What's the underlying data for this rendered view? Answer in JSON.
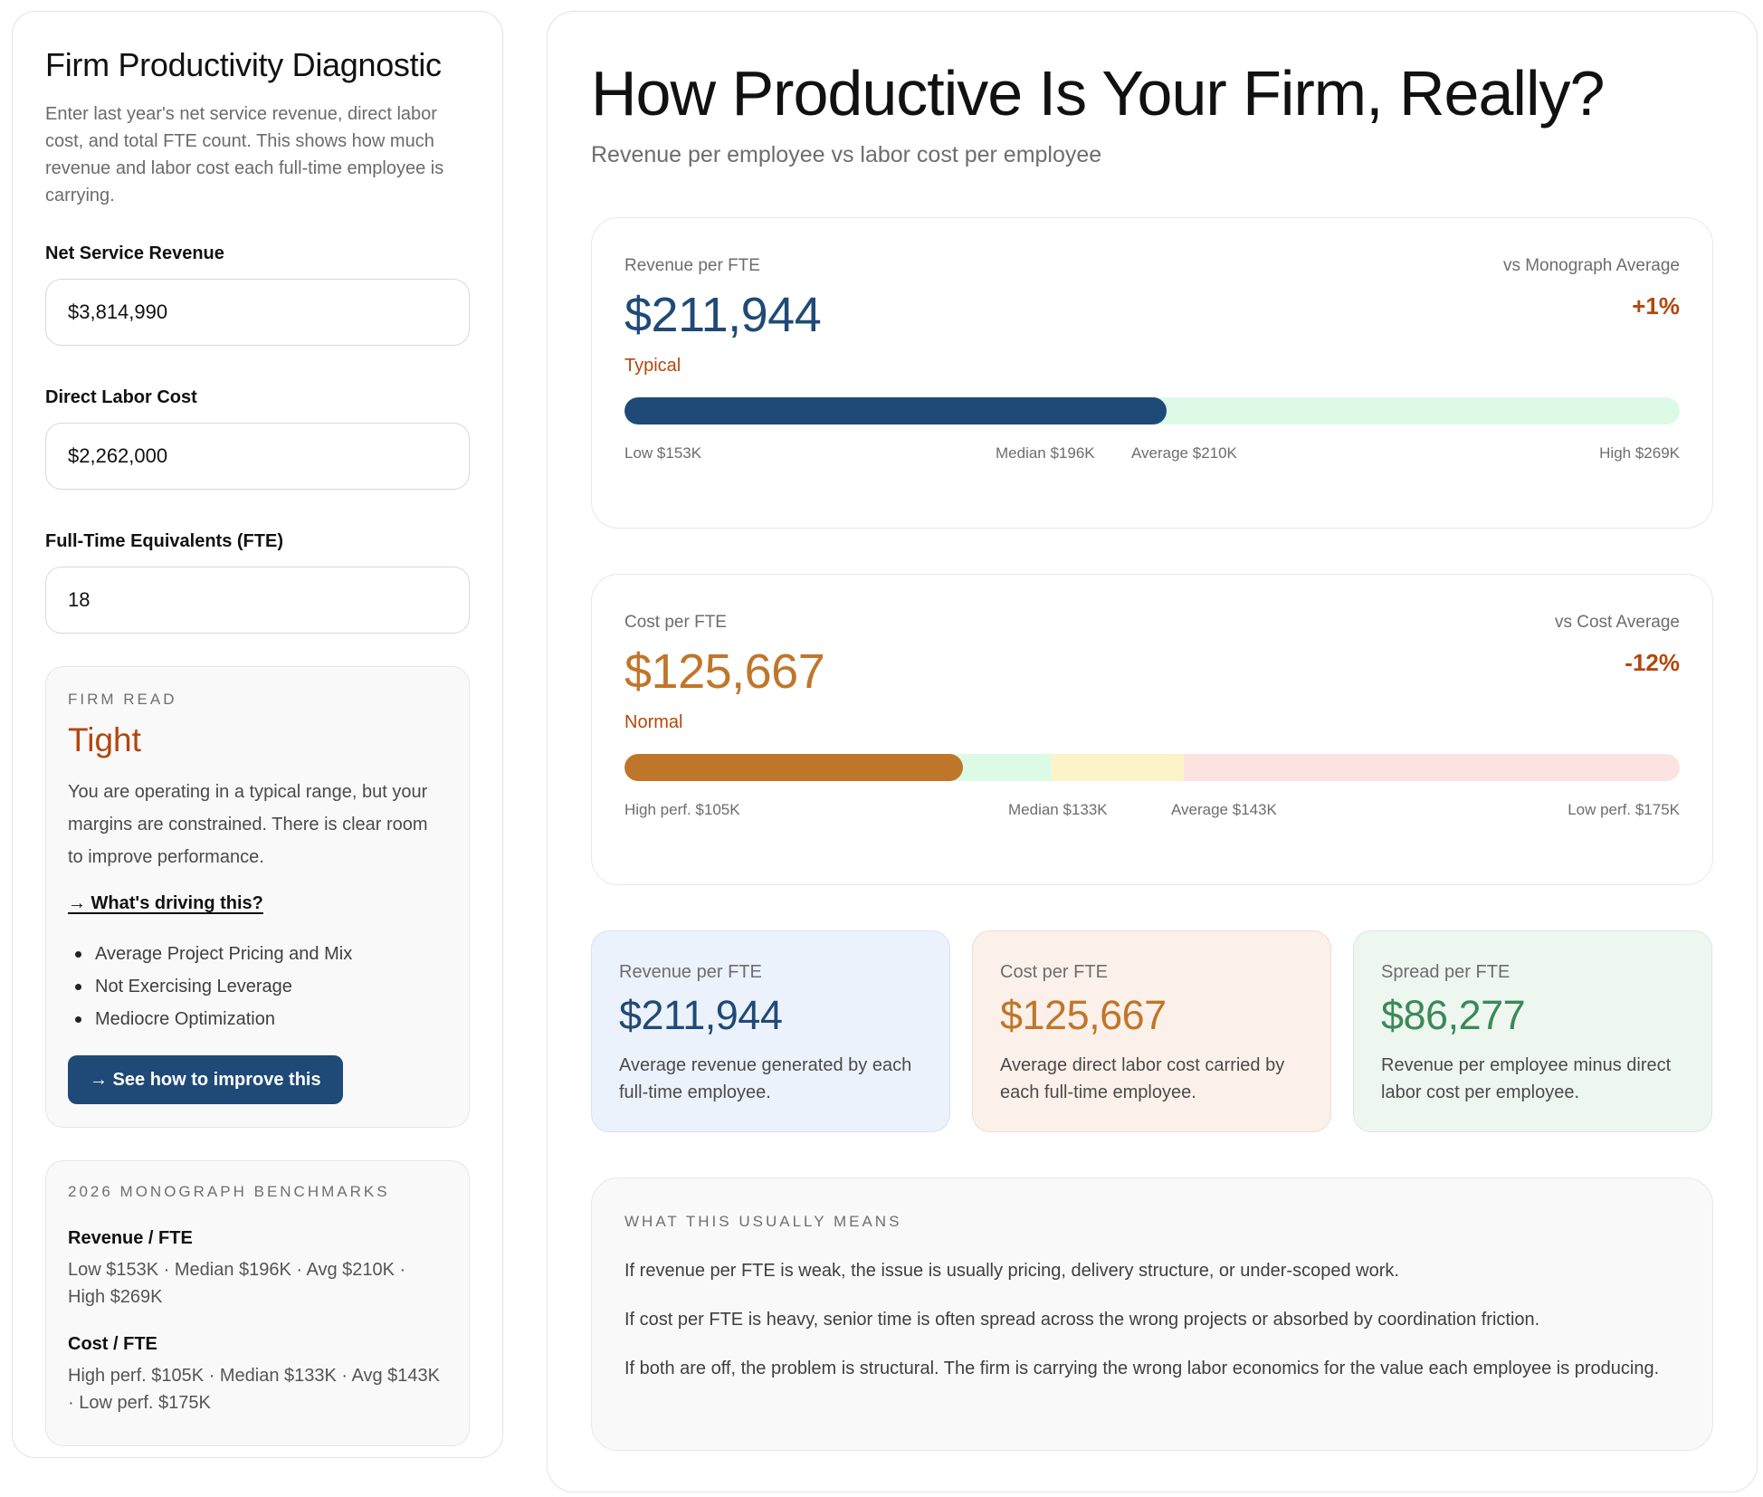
{
  "sidebar": {
    "title": "Firm Productivity Diagnostic",
    "description": "Enter last year's net service revenue, direct labor cost, and total FTE count. This shows how much revenue and labor cost each full-time employee is carrying.",
    "fields": {
      "revenue": {
        "label": "Net Service Revenue",
        "value": "$3,814,990"
      },
      "labor": {
        "label": "Direct Labor Cost",
        "value": "$2,262,000"
      },
      "fte": {
        "label": "Full-Time Equivalents (FTE)",
        "value": "18"
      }
    },
    "firm_read": {
      "eyebrow": "FIRM READ",
      "verdict": "Tight",
      "text": "You are operating in a typical range, but your margins are constrained. There is clear room to improve performance.",
      "link": "→ What's driving this?",
      "drivers": [
        "Average Project Pricing and Mix",
        "Not Exercising Leverage",
        "Mediocre Optimization"
      ],
      "cta": "→ See how to improve this"
    },
    "benchmarks": {
      "eyebrow": "2026 MONOGRAPH BENCHMARKS",
      "revenue_heading": "Revenue / FTE",
      "revenue_text": "Low $153K · Median $196K · Avg $210K · High $269K",
      "cost_heading": "Cost / FTE",
      "cost_text": "High perf. $105K · Median $133K · Avg $143K · Low perf. $175K"
    }
  },
  "main": {
    "title": "How Productive Is Your Firm, Really?",
    "subtitle": "Revenue per employee vs labor cost per employee",
    "revenue_card": {
      "label": "Revenue per FTE",
      "value": "$211,944",
      "status": "Typical",
      "compare_label": "vs Monograph Average",
      "compare_value": "+1%",
      "fill_fraction": 0.514,
      "colors": {
        "fill": "#1f4a78",
        "track": "#ddfae6"
      },
      "ticks": {
        "low": "Low $153K",
        "median": "Median $196K",
        "average": "Average $210K",
        "high": "High $269K"
      }
    },
    "cost_card": {
      "label": "Cost per FTE",
      "value": "$125,667",
      "status": "Normal",
      "compare_label": "vs Cost Average",
      "compare_value": "-12%",
      "fill_fraction": 0.321,
      "colors": {
        "fill": "#c0762a",
        "good": "#ddfae6",
        "mid": "#fdf3c9",
        "bad": "#fde2e2"
      },
      "ticks": {
        "low": "High perf. $105K",
        "median": "Median $133K",
        "average": "Average $143K",
        "high": "Low perf. $175K"
      }
    },
    "summary": [
      {
        "label": "Revenue per FTE",
        "value": "$211,944",
        "desc": "Average revenue generated by each full-time employee.",
        "color": "#1f4a78"
      },
      {
        "label": "Cost per FTE",
        "value": "$125,667",
        "desc": "Average direct labor cost carried by each full-time employee.",
        "color": "#c0762a"
      },
      {
        "label": "Spread per FTE",
        "value": "$86,277",
        "desc": "Revenue per employee minus direct labor cost per employee.",
        "color": "#3b8a57"
      }
    ],
    "means": {
      "eyebrow": "WHAT THIS USUALLY MEANS",
      "p1": "If revenue per FTE is weak, the issue is usually pricing, delivery structure, or under-scoped work.",
      "p2": "If cost per FTE is heavy, senior time is often spread across the wrong projects or absorbed by coordination friction.",
      "p3": "If both are off, the problem is structural. The firm is carrying the wrong labor economics for the value each employee is producing."
    }
  }
}
